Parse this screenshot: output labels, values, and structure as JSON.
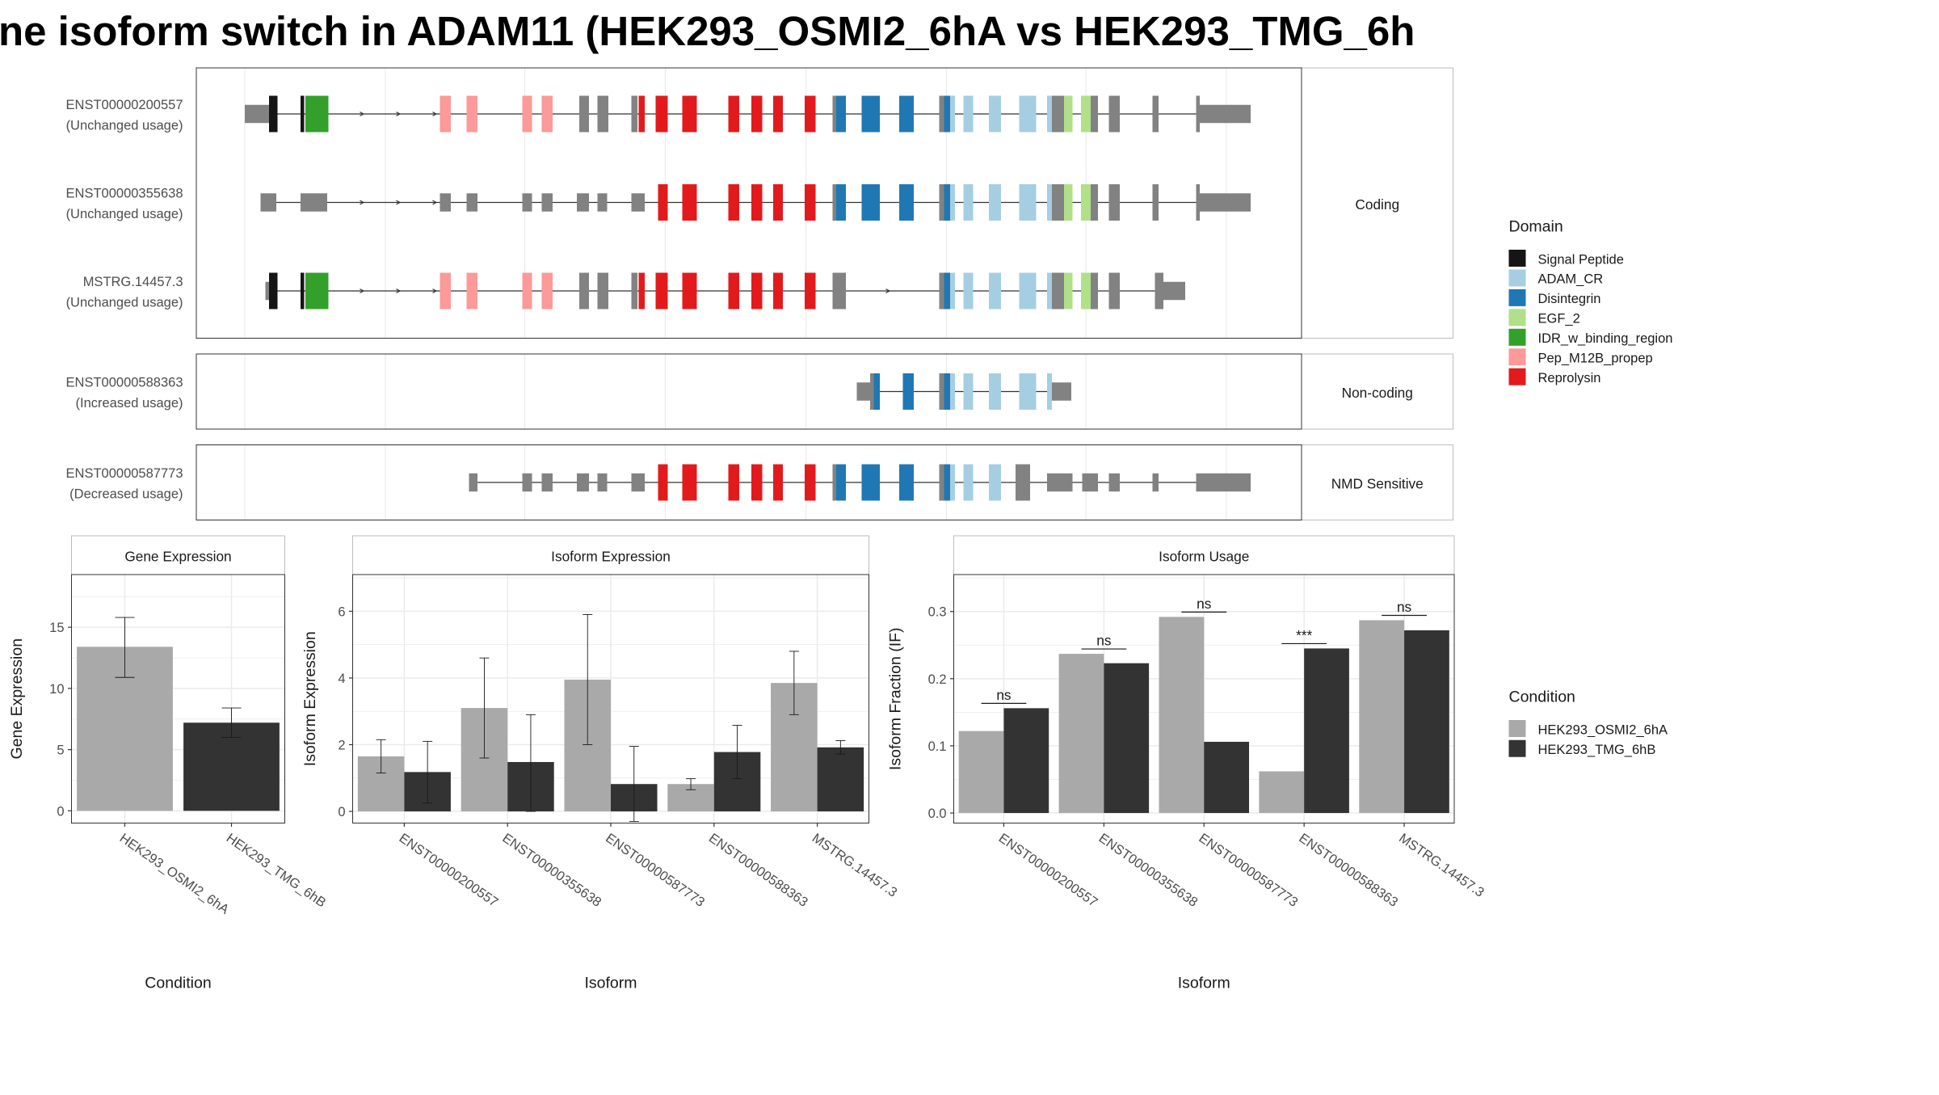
{
  "title": "ne isoform switch in ADAM11 (HEK293_OSMI2_6hA vs HEK293_TMG_6h",
  "colors": {
    "intron": "#333333",
    "noncoding_exon": "#828282",
    "grid": "#ebebeb",
    "panel_border": "#333333",
    "strip_border": "#bdbdbd",
    "strip_fill": "#ffffff",
    "domains": {
      "Signal Peptide": "#151515",
      "ADAM_CR": "#a6cee3",
      "Disintegrin": "#1f78b4",
      "EGF_2": "#b2df8a",
      "IDR_w_binding_region": "#33a02c",
      "Pep_M12B_propep": "#fb9a99",
      "Reprolysin": "#e31a1c"
    },
    "conditions": {
      "HEK293_OSMI2_6hA": "#a9a9a9",
      "HEK293_TMG_6hB": "#333333"
    }
  },
  "legend": {
    "domain_title": "Domain",
    "domain_items": [
      "Signal Peptide",
      "ADAM_CR",
      "Disintegrin",
      "EGF_2",
      "IDR_w_binding_region",
      "Pep_M12B_propep",
      "Reprolysin"
    ],
    "condition_title": "Condition",
    "condition_items": [
      "HEK293_OSMI2_6hA",
      "HEK293_TMG_6hB"
    ]
  },
  "transcripts": {
    "facets": [
      "Coding",
      "Non-coding",
      "NMD Sensitive"
    ],
    "tracks": [
      {
        "name": "ENST00000200557",
        "usage": "(Unchanged usage)",
        "facet": "Coding",
        "intron": [
          202,
          1032
        ],
        "arrows": [
          300,
          330,
          360
        ],
        "exons": [
          [
            202,
            222,
            "utr"
          ],
          [
            222,
            229,
            "Signal Peptide"
          ],
          [
            248,
            251,
            "Signal Peptide"
          ],
          [
            252,
            271,
            "IDR_w_binding_region"
          ],
          [
            363,
            372,
            "Pep_M12B_propep"
          ],
          [
            385,
            394,
            "Pep_M12B_propep"
          ],
          [
            431,
            439,
            "Pep_M12B_propep"
          ],
          [
            447,
            456,
            "Pep_M12B_propep"
          ],
          [
            478,
            486,
            "cds"
          ],
          [
            493,
            502,
            "cds"
          ],
          [
            521,
            526,
            "cds"
          ],
          [
            527,
            532,
            "Reprolysin"
          ],
          [
            541,
            551,
            "Reprolysin"
          ],
          [
            563,
            575,
            "Reprolysin"
          ],
          [
            601,
            610,
            "Reprolysin"
          ],
          [
            620,
            629,
            "Reprolysin"
          ],
          [
            638,
            646,
            "Reprolysin"
          ],
          [
            664,
            673,
            "Reprolysin"
          ],
          [
            687,
            690,
            "cds"
          ],
          [
            690,
            698,
            "Disintegrin"
          ],
          [
            711,
            726,
            "Disintegrin"
          ],
          [
            742,
            754,
            "Disintegrin"
          ],
          [
            775,
            779,
            "cds"
          ],
          [
            779,
            784,
            "Disintegrin"
          ],
          [
            784,
            788,
            "ADAM_CR"
          ],
          [
            795,
            803,
            "ADAM_CR"
          ],
          [
            816,
            826,
            "ADAM_CR"
          ],
          [
            841,
            855,
            "ADAM_CR"
          ],
          [
            864,
            868,
            "ADAM_CR"
          ],
          [
            868,
            878,
            "cds"
          ],
          [
            878,
            885,
            "EGF_2"
          ],
          [
            892,
            900,
            "EGF_2"
          ],
          [
            900,
            906,
            "cds"
          ],
          [
            915,
            924,
            "cds"
          ],
          [
            951,
            956,
            "cds"
          ],
          [
            987,
            990,
            "cds"
          ],
          [
            990,
            1032,
            "utr"
          ]
        ]
      },
      {
        "name": "ENST00000355638",
        "usage": "(Unchanged usage)",
        "facet": "Coding",
        "intron": [
          215,
          1032
        ],
        "arrows": [
          300,
          330,
          360
        ],
        "exons": [
          [
            215,
            228,
            "utr"
          ],
          [
            248,
            270,
            "utr"
          ],
          [
            363,
            372,
            "utr"
          ],
          [
            385,
            394,
            "utr"
          ],
          [
            431,
            439,
            "utr"
          ],
          [
            447,
            456,
            "utr"
          ],
          [
            476,
            486,
            "utr"
          ],
          [
            493,
            501,
            "utr"
          ],
          [
            521,
            532,
            "utr"
          ],
          [
            543,
            551,
            "Reprolysin"
          ],
          [
            563,
            575,
            "Reprolysin"
          ],
          [
            601,
            610,
            "Reprolysin"
          ],
          [
            620,
            629,
            "Reprolysin"
          ],
          [
            638,
            646,
            "Reprolysin"
          ],
          [
            664,
            673,
            "Reprolysin"
          ],
          [
            687,
            690,
            "cds"
          ],
          [
            690,
            698,
            "Disintegrin"
          ],
          [
            711,
            726,
            "Disintegrin"
          ],
          [
            742,
            754,
            "Disintegrin"
          ],
          [
            775,
            779,
            "cds"
          ],
          [
            779,
            784,
            "Disintegrin"
          ],
          [
            784,
            788,
            "ADAM_CR"
          ],
          [
            795,
            803,
            "ADAM_CR"
          ],
          [
            816,
            826,
            "ADAM_CR"
          ],
          [
            841,
            855,
            "ADAM_CR"
          ],
          [
            864,
            868,
            "ADAM_CR"
          ],
          [
            868,
            878,
            "cds"
          ],
          [
            878,
            885,
            "EGF_2"
          ],
          [
            892,
            900,
            "EGF_2"
          ],
          [
            900,
            906,
            "cds"
          ],
          [
            915,
            924,
            "cds"
          ],
          [
            951,
            956,
            "cds"
          ],
          [
            987,
            990,
            "cds"
          ],
          [
            990,
            1032,
            "utr"
          ]
        ]
      },
      {
        "name": "MSTRG.14457.3",
        "usage": "(Unchanged usage)",
        "facet": "Coding",
        "intron": [
          219,
          978
        ],
        "arrows": [
          300,
          330,
          360,
          734
        ],
        "exons": [
          [
            219,
            222,
            "utr"
          ],
          [
            222,
            229,
            "Signal Peptide"
          ],
          [
            248,
            251,
            "Signal Peptide"
          ],
          [
            252,
            271,
            "IDR_w_binding_region"
          ],
          [
            363,
            372,
            "Pep_M12B_propep"
          ],
          [
            385,
            394,
            "Pep_M12B_propep"
          ],
          [
            431,
            439,
            "Pep_M12B_propep"
          ],
          [
            447,
            456,
            "Pep_M12B_propep"
          ],
          [
            478,
            486,
            "cds"
          ],
          [
            493,
            502,
            "cds"
          ],
          [
            521,
            526,
            "cds"
          ],
          [
            527,
            532,
            "Reprolysin"
          ],
          [
            541,
            551,
            "Reprolysin"
          ],
          [
            563,
            575,
            "Reprolysin"
          ],
          [
            601,
            610,
            "Reprolysin"
          ],
          [
            620,
            629,
            "Reprolysin"
          ],
          [
            638,
            646,
            "Reprolysin"
          ],
          [
            664,
            673,
            "Reprolysin"
          ],
          [
            687,
            698,
            "cds"
          ],
          [
            775,
            779,
            "cds"
          ],
          [
            779,
            784,
            "Disintegrin"
          ],
          [
            784,
            788,
            "ADAM_CR"
          ],
          [
            795,
            803,
            "ADAM_CR"
          ],
          [
            816,
            826,
            "ADAM_CR"
          ],
          [
            841,
            855,
            "ADAM_CR"
          ],
          [
            864,
            868,
            "ADAM_CR"
          ],
          [
            868,
            878,
            "cds"
          ],
          [
            878,
            885,
            "EGF_2"
          ],
          [
            892,
            900,
            "EGF_2"
          ],
          [
            900,
            906,
            "cds"
          ],
          [
            915,
            924,
            "cds"
          ],
          [
            953,
            960,
            "cds"
          ],
          [
            960,
            978,
            "utr"
          ]
        ]
      },
      {
        "name": "ENST00000588363",
        "usage": "(Increased usage)",
        "facet": "Non-coding",
        "intron": [
          707,
          884
        ],
        "arrows": [],
        "exons": [
          [
            707,
            718,
            "utr"
          ],
          [
            718,
            721,
            "cds"
          ],
          [
            721,
            726,
            "Disintegrin"
          ],
          [
            745,
            754,
            "Disintegrin"
          ],
          [
            775,
            779,
            "cds"
          ],
          [
            779,
            784,
            "Disintegrin"
          ],
          [
            784,
            788,
            "ADAM_CR"
          ],
          [
            795,
            803,
            "ADAM_CR"
          ],
          [
            816,
            826,
            "ADAM_CR"
          ],
          [
            841,
            855,
            "ADAM_CR"
          ],
          [
            864,
            868,
            "ADAM_CR"
          ],
          [
            868,
            884,
            "utr"
          ]
        ]
      },
      {
        "name": "ENST00000587773",
        "usage": "(Decreased usage)",
        "facet": "NMD Sensitive",
        "intron": [
          387,
          1032
        ],
        "arrows": [],
        "exons": [
          [
            387,
            394,
            "utr"
          ],
          [
            431,
            439,
            "utr"
          ],
          [
            447,
            456,
            "utr"
          ],
          [
            476,
            486,
            "utr"
          ],
          [
            493,
            501,
            "utr"
          ],
          [
            521,
            532,
            "utr"
          ],
          [
            543,
            551,
            "Reprolysin"
          ],
          [
            563,
            575,
            "Reprolysin"
          ],
          [
            601,
            610,
            "Reprolysin"
          ],
          [
            620,
            629,
            "Reprolysin"
          ],
          [
            638,
            646,
            "Reprolysin"
          ],
          [
            664,
            673,
            "Reprolysin"
          ],
          [
            687,
            690,
            "cds"
          ],
          [
            690,
            698,
            "Disintegrin"
          ],
          [
            711,
            726,
            "Disintegrin"
          ],
          [
            742,
            754,
            "Disintegrin"
          ],
          [
            775,
            779,
            "cds"
          ],
          [
            779,
            784,
            "Disintegrin"
          ],
          [
            784,
            788,
            "ADAM_CR"
          ],
          [
            795,
            803,
            "ADAM_CR"
          ],
          [
            816,
            826,
            "ADAM_CR"
          ],
          [
            838,
            850,
            "cds"
          ],
          [
            864,
            885,
            "utr"
          ],
          [
            893,
            906,
            "utr"
          ],
          [
            915,
            924,
            "utr"
          ],
          [
            951,
            956,
            "utr"
          ],
          [
            987,
            1032,
            "utr"
          ]
        ]
      }
    ]
  },
  "chart_data": [
    {
      "type": "bar",
      "title": "Gene Expression",
      "xlabel": "Condition",
      "ylabel": "Gene Expression",
      "ylim": [
        -1,
        19.3
      ],
      "yticks": [
        0,
        5,
        10,
        15
      ],
      "categories": [
        "HEK293_OSMI2_6hA",
        "HEK293_TMG_6hB"
      ],
      "values": [
        13.4,
        7.2
      ],
      "error_low": [
        10.9,
        6.0
      ],
      "error_high": [
        15.8,
        8.4
      ]
    },
    {
      "type": "bar",
      "title": "Isoform Expression",
      "xlabel": "Isoform",
      "ylabel": "Isoform Expression",
      "ylim": [
        -0.35,
        7.1
      ],
      "yticks": [
        0,
        2,
        4,
        6
      ],
      "categories": [
        "ENST00000200557",
        "ENST00000355638",
        "ENST00000587773",
        "ENST00000588363",
        "MSTRG.14457.3"
      ],
      "series": [
        {
          "name": "HEK293_OSMI2_6hA",
          "values": [
            1.65,
            3.1,
            3.95,
            0.82,
            3.85
          ],
          "error_low": [
            1.15,
            1.6,
            2.0,
            0.65,
            2.9
          ],
          "error_high": [
            2.15,
            4.6,
            5.9,
            0.98,
            4.8
          ]
        },
        {
          "name": "HEK293_TMG_6hB",
          "values": [
            1.18,
            1.48,
            0.82,
            1.78,
            1.92
          ],
          "error_low": [
            0.25,
            0.0,
            -0.3,
            0.98,
            1.72
          ],
          "error_high": [
            2.1,
            2.9,
            1.95,
            2.58,
            2.12
          ]
        }
      ]
    },
    {
      "type": "bar",
      "title": "Isoform Usage",
      "xlabel": "Isoform",
      "ylabel": "Isoform Fraction (IF)",
      "ylim": [
        -0.015,
        0.355
      ],
      "yticks": [
        "0.0",
        "0.1",
        "0.2",
        "0.3"
      ],
      "categories": [
        "ENST00000200557",
        "ENST00000355638",
        "ENST00000587773",
        "ENST00000588363",
        "MSTRG.14457.3"
      ],
      "series": [
        {
          "name": "HEK293_OSMI2_6hA",
          "values": [
            0.122,
            0.237,
            0.292,
            0.062,
            0.287
          ]
        },
        {
          "name": "HEK293_TMG_6hB",
          "values": [
            0.156,
            0.223,
            0.106,
            0.245,
            0.272
          ]
        }
      ],
      "significance": [
        "ns",
        "ns",
        "ns",
        "***",
        "ns"
      ]
    }
  ]
}
